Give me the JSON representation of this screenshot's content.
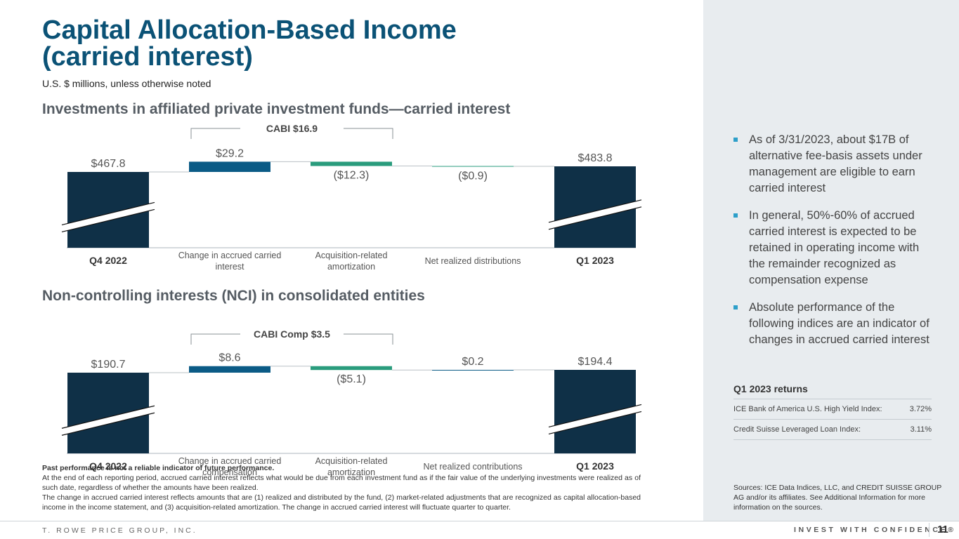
{
  "title_line1": "Capital Allocation-Based Income",
  "title_line2": "(carried interest)",
  "subtitle": "U.S. $ millions, unless otherwise noted",
  "section1_title": "Investments in affiliated private investment funds—carried interest",
  "section2_title": "Non-controlling interests (NCI) in consolidated entities",
  "colors": {
    "total_bar": "#0f3047",
    "increase_bar": "#0b5b86",
    "decrease_bar": "#2a9c7d",
    "title": "#0b5276"
  },
  "chart_data": [
    {
      "type": "bar",
      "subtype": "waterfall",
      "bracket_label": "CABI  $16.9",
      "categories": [
        "Q4 2022",
        "Change in accrued carried interest",
        "Acquisition-related amortization",
        "Net realized distributions",
        "Q1 2023"
      ],
      "category_lines": [
        [
          "Q4 2022"
        ],
        [
          "Change in accrued carried",
          "interest"
        ],
        [
          "Acquisition-related",
          "amortization"
        ],
        [
          "Net realized distributions"
        ],
        [
          "Q1 2023"
        ]
      ],
      "values": [
        467.8,
        29.2,
        -12.3,
        -0.9,
        483.8
      ],
      "value_labels": [
        "$467.8",
        "$29.2",
        "($12.3)",
        "($0.9)",
        "$483.8"
      ],
      "kinds": [
        "total",
        "delta",
        "delta",
        "delta",
        "total"
      ],
      "axis_break": true
    },
    {
      "type": "bar",
      "subtype": "waterfall",
      "bracket_label": "CABI Comp $3.5",
      "categories": [
        "Q4 2022",
        "Change in accrued carried compensation",
        "Acquisition-related amortization",
        "Net realized contributions",
        "Q1 2023"
      ],
      "category_lines": [
        [
          "Q4 2022"
        ],
        [
          "Change in accrued carried",
          "compensation"
        ],
        [
          "Acquisition-related",
          "amortization"
        ],
        [
          "Net realized contributions"
        ],
        [
          "Q1 2023"
        ]
      ],
      "values": [
        190.7,
        8.6,
        -5.1,
        0.2,
        194.4
      ],
      "value_labels": [
        "$190.7",
        "$8.6",
        "($5.1)",
        "$0.2",
        "$194.4"
      ],
      "kinds": [
        "total",
        "delta",
        "delta",
        "delta",
        "total"
      ],
      "axis_break": true
    }
  ],
  "bullets": [
    "As of 3/31/2023, about $17B of alternative fee-basis assets under management are eligible to earn carried interest",
    "In general, 50%-60% of accrued carried interest is expected to be retained in operating income with the remainder recognized as compensation expense",
    "Absolute performance of the following indices are an indicator of changes in accrued carried interest"
  ],
  "returns": {
    "heading": "Q1 2023 returns",
    "rows": [
      {
        "label": "ICE Bank of America U.S. High Yield Index:",
        "value": "3.72%"
      },
      {
        "label": "Credit Suisse Leveraged Loan Index:",
        "value": "3.11%"
      }
    ]
  },
  "sources": "Sources: ICE Data Indices, LLC, and CREDIT SUISSE GROUP AG and/or its affiliates. See Additional Information for more information on the sources.",
  "footnotes": {
    "bold": "Past performance is not a reliable indicator of future performance.",
    "p1": "At the end of each reporting period, accrued carried interest reflects what would be due from each investment fund as if the fair value of the underlying investments were realized as of such date, regardless of whether the amounts have been realized.",
    "p2": "The change in accrued carried interest reflects amounts that are (1) realized and distributed by the fund, (2) market-related adjustments that are recognized as capital allocation-based income in the income statement, and (3) acquisition-related amortization. The change in accrued carried interest will fluctuate quarter to quarter."
  },
  "footer": {
    "company": "T. ROWE PRICE GROUP, INC.",
    "tagline": "INVEST WITH CONFIDENCE®",
    "page": "11"
  }
}
